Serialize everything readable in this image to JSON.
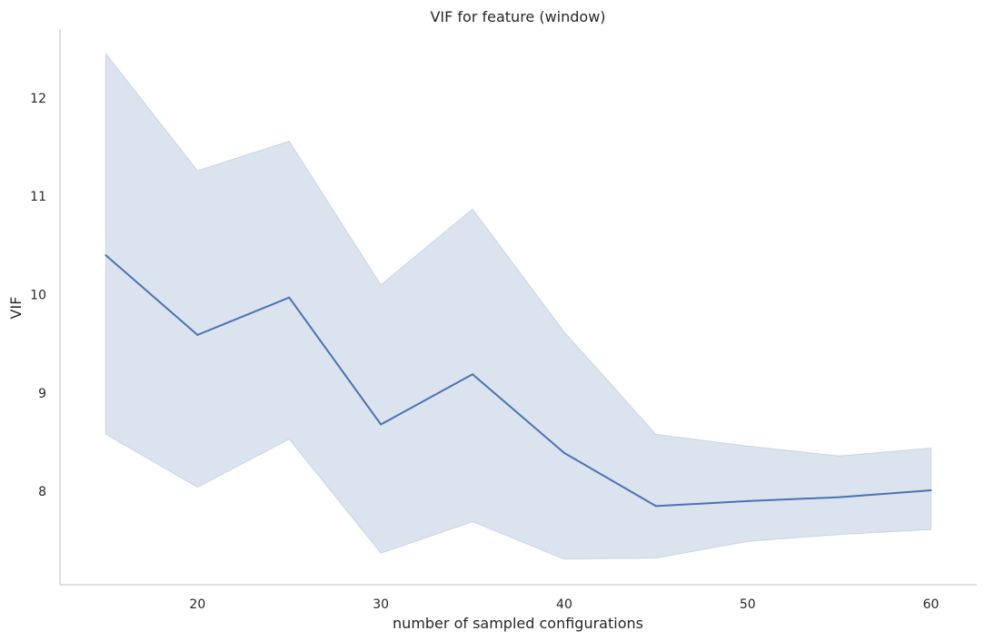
{
  "chart_data": {
    "type": "line",
    "title": "VIF for feature (window)",
    "xlabel": "number of sampled configurations",
    "ylabel": "VIF",
    "xlim": [
      12.5,
      62.5
    ],
    "ylim": [
      7.05,
      12.7
    ],
    "xticks": [
      20,
      30,
      40,
      50,
      60
    ],
    "yticks": [
      8,
      9,
      10,
      11,
      12
    ],
    "grid": false,
    "legend": "none",
    "series": [
      {
        "x": [
          15,
          20,
          25,
          30,
          35,
          40,
          45,
          50,
          55,
          60
        ],
        "y": [
          10.4,
          9.59,
          9.97,
          8.68,
          9.19,
          8.39,
          7.85,
          7.9,
          7.94,
          8.01
        ],
        "ci_lower": [
          8.58,
          8.04,
          8.53,
          7.37,
          7.69,
          7.31,
          7.32,
          7.49,
          7.56,
          7.61
        ],
        "ci_upper": [
          12.45,
          11.26,
          11.56,
          10.1,
          10.87,
          9.62,
          8.58,
          8.46,
          8.36,
          8.44
        ],
        "color": "#4c72b0",
        "band_color": "#4c72b0"
      }
    ]
  }
}
